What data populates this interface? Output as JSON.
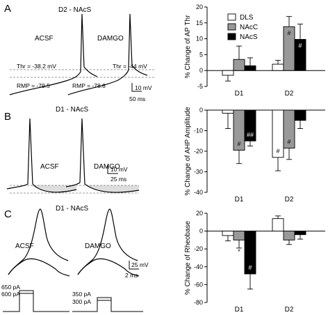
{
  "panels": {
    "A": {
      "letter": "A",
      "title": "D2 - NAcS",
      "acsf": "ACSF",
      "damgo": "DAMGO",
      "thr_acsf": "Thr = -38.2 mV",
      "thr_damgo": "Thr = -44 mV",
      "rmp_acsf": "RMP = -79.5",
      "rmp_damgo": "RMP = -78.8",
      "scale_v": "10 mV",
      "scale_t": "50 ms"
    },
    "B": {
      "letter": "B",
      "title": "D1 - NAcS",
      "acsf": "ACSF",
      "damgo": "DAMGO",
      "scale_v": "10 mV",
      "scale_t": "25 ms"
    },
    "C": {
      "letter": "C",
      "title": "D1 - NAcS",
      "acsf": "ACSF",
      "damgo": "DAMGO",
      "scale_v": "25 mV",
      "scale_t": "2 ms",
      "cur_acsf_hi": "650 pA",
      "cur_acsf_lo": "600 pA",
      "cur_damgo_hi": "350 pA",
      "cur_damgo_lo": "300 pA"
    }
  },
  "legend": [
    "DLS",
    "NAcC",
    "NAcS"
  ],
  "colors": {
    "DLS": "#ffffff",
    "NAcC": "#999999",
    "NAcS": "#000000"
  },
  "chart_data": [
    {
      "type": "bar",
      "ylabel": "% Change of AP Thr",
      "categories": [
        "D1",
        "D2"
      ],
      "ylim": [
        -5,
        20
      ],
      "yticks": [
        -5,
        0,
        5,
        10,
        15,
        20
      ],
      "series": [
        {
          "name": "DLS",
          "values": [
            -1.5,
            2
          ],
          "errors": [
            1.8,
            1.2
          ]
        },
        {
          "name": "NAcC",
          "values": [
            3.5,
            13.8
          ],
          "errors": [
            4.2,
            3.2
          ]
        },
        {
          "name": "NAcS",
          "values": [
            1.5,
            9.8
          ],
          "errors": [
            2.5,
            4.8
          ]
        }
      ],
      "annotations": [
        {
          "series": "NAcC",
          "category": "D2",
          "text": "#"
        },
        {
          "series": "NAcS",
          "category": "D2",
          "text": "#"
        }
      ]
    },
    {
      "type": "bar",
      "ylabel": "% Change of AHP Amplitude",
      "categories": [
        "D1",
        "D2"
      ],
      "ylim": [
        -40,
        0
      ],
      "yticks": [
        -40,
        -30,
        -20,
        -10,
        0
      ],
      "series": [
        {
          "name": "DLS",
          "values": [
            -1.5,
            -23
          ],
          "errors": [
            7.5,
            6.5
          ]
        },
        {
          "name": "NAcC",
          "values": [
            -19.5,
            -18.5
          ],
          "errors": [
            6.5,
            5.5
          ]
        },
        {
          "name": "NAcS",
          "values": [
            -15,
            -5
          ],
          "errors": [
            2.5,
            4
          ]
        }
      ],
      "annotations": [
        {
          "series": "NAcC",
          "category": "D1",
          "text": "#"
        },
        {
          "series": "NAcS",
          "category": "D1",
          "text": "##"
        },
        {
          "series": "DLS",
          "category": "D2",
          "text": "#"
        },
        {
          "series": "NAcC",
          "category": "D2",
          "text": "#"
        }
      ]
    },
    {
      "type": "bar",
      "ylabel": "% Change of Rheobase",
      "categories": [
        "D1",
        "D2"
      ],
      "ylim": [
        -80,
        20
      ],
      "yticks": [
        -80,
        -60,
        -40,
        -20,
        0,
        20
      ],
      "series": [
        {
          "name": "DLS",
          "values": [
            -5,
            14
          ],
          "errors": [
            6,
            3
          ]
        },
        {
          "name": "NAcC",
          "values": [
            -10,
            -10
          ],
          "errors": [
            9,
            5
          ]
        },
        {
          "name": "NAcS",
          "values": [
            -48,
            -4
          ],
          "errors": [
            17,
            5
          ]
        }
      ],
      "annotations": [
        {
          "series": "NAcC",
          "category": "D1",
          "text": "*",
          "position": "below-error"
        },
        {
          "series": "NAcS",
          "category": "D1",
          "text": "#"
        }
      ]
    }
  ]
}
